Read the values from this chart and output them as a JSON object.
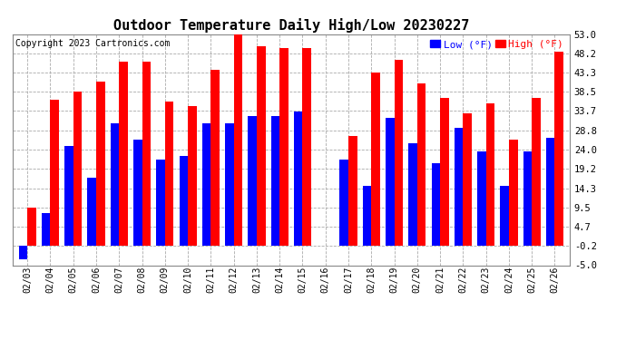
{
  "title": "Outdoor Temperature Daily High/Low 20230227",
  "copyright": "Copyright 2023 Cartronics.com",
  "legend_low_label": "Low (°F)",
  "legend_high_label": "High (°F)",
  "dates": [
    "02/03",
    "02/04",
    "02/05",
    "02/06",
    "02/07",
    "02/08",
    "02/09",
    "02/10",
    "02/11",
    "02/12",
    "02/13",
    "02/14",
    "02/15",
    "02/16",
    "02/17",
    "02/18",
    "02/19",
    "02/20",
    "02/21",
    "02/22",
    "02/23",
    "02/24",
    "02/25",
    "02/26"
  ],
  "highs": [
    9.5,
    36.5,
    38.5,
    41.0,
    46.0,
    46.0,
    36.0,
    35.0,
    44.0,
    53.0,
    50.0,
    49.5,
    49.5,
    null,
    27.5,
    43.3,
    46.5,
    40.5,
    37.0,
    33.0,
    35.5,
    26.5,
    37.0,
    48.5
  ],
  "lows": [
    -3.5,
    8.0,
    25.0,
    17.0,
    30.5,
    26.5,
    21.5,
    22.5,
    30.5,
    30.5,
    32.5,
    32.5,
    33.5,
    null,
    21.5,
    15.0,
    32.0,
    25.5,
    20.5,
    29.5,
    23.5,
    15.0,
    23.5,
    27.0
  ],
  "ylim": [
    -5.0,
    53.0
  ],
  "yticks": [
    -5.0,
    -0.2,
    4.7,
    9.5,
    14.3,
    19.2,
    24.0,
    28.8,
    33.7,
    38.5,
    43.3,
    48.2,
    53.0
  ],
  "high_color": "#ff0000",
  "low_color": "#0000ff",
  "bg_color": "#ffffff",
  "grid_color": "#aaaaaa",
  "title_fontsize": 11,
  "copyright_fontsize": 7,
  "bar_width": 0.38,
  "fig_width": 6.9,
  "fig_height": 3.75,
  "dpi": 100
}
